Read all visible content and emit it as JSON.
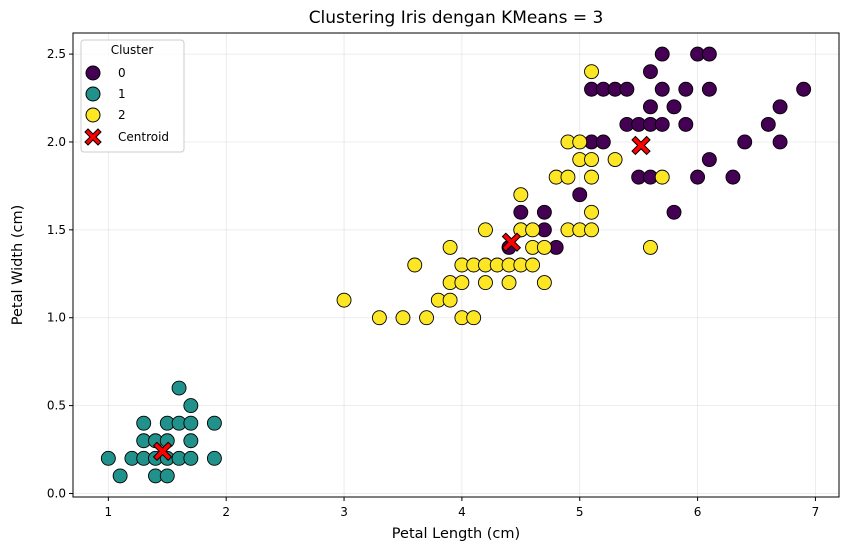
{
  "chart_data": {
    "type": "scatter",
    "title": "Clustering Iris dengan KMeans = 3",
    "xlabel": "Petal Length (cm)",
    "ylabel": "Petal Width (cm)",
    "xlim": [
      0.7,
      7.2
    ],
    "ylim": [
      -0.02,
      2.62
    ],
    "x_ticks": [
      1,
      2,
      3,
      4,
      5,
      6,
      7
    ],
    "y_ticks": [
      0.0,
      0.5,
      1.0,
      1.5,
      2.0,
      2.5
    ],
    "x_tick_labels": [
      "1",
      "2",
      "3",
      "4",
      "5",
      "6",
      "7"
    ],
    "y_tick_labels": [
      "0.0",
      "0.5",
      "1.0",
      "1.5",
      "2.0",
      "2.5"
    ],
    "grid": true,
    "legend": {
      "title": "Cluster",
      "placement": "top-left",
      "entries": [
        "0",
        "1",
        "2",
        "Centroid"
      ]
    },
    "colors": {
      "cluster_0": "#440154",
      "cluster_1": "#21918c",
      "cluster_2": "#fde725",
      "centroid": "#ff0000"
    },
    "series": [
      {
        "name": "0",
        "points": [
          [
            4.4,
            1.4
          ],
          [
            4.5,
            1.5
          ],
          [
            4.5,
            1.6
          ],
          [
            4.7,
            1.5
          ],
          [
            4.7,
            1.6
          ],
          [
            4.8,
            1.4
          ],
          [
            5.0,
            1.7
          ],
          [
            5.1,
            2.0
          ],
          [
            5.2,
            2.0
          ],
          [
            5.1,
            2.3
          ],
          [
            5.2,
            2.3
          ],
          [
            5.3,
            2.3
          ],
          [
            5.4,
            2.3
          ],
          [
            5.4,
            2.1
          ],
          [
            5.5,
            2.1
          ],
          [
            5.6,
            2.1
          ],
          [
            5.7,
            2.1
          ],
          [
            5.6,
            2.2
          ],
          [
            5.6,
            2.4
          ],
          [
            5.7,
            2.5
          ],
          [
            5.7,
            2.3
          ],
          [
            5.8,
            2.2
          ],
          [
            5.9,
            2.3
          ],
          [
            5.9,
            2.1
          ],
          [
            6.0,
            2.5
          ],
          [
            6.1,
            2.5
          ],
          [
            6.1,
            2.3
          ],
          [
            5.5,
            1.8
          ],
          [
            5.6,
            1.8
          ],
          [
            6.0,
            1.8
          ],
          [
            6.1,
            1.9
          ],
          [
            6.3,
            1.8
          ],
          [
            5.8,
            1.6
          ],
          [
            6.4,
            2.0
          ],
          [
            6.6,
            2.1
          ],
          [
            6.7,
            2.2
          ],
          [
            6.7,
            2.0
          ],
          [
            6.9,
            2.3
          ]
        ]
      },
      {
        "name": "1",
        "points": [
          [
            1.0,
            0.2
          ],
          [
            1.1,
            0.1
          ],
          [
            1.2,
            0.2
          ],
          [
            1.3,
            0.2
          ],
          [
            1.3,
            0.3
          ],
          [
            1.3,
            0.4
          ],
          [
            1.4,
            0.1
          ],
          [
            1.4,
            0.2
          ],
          [
            1.4,
            0.3
          ],
          [
            1.5,
            0.1
          ],
          [
            1.5,
            0.2
          ],
          [
            1.5,
            0.3
          ],
          [
            1.5,
            0.4
          ],
          [
            1.6,
            0.2
          ],
          [
            1.6,
            0.4
          ],
          [
            1.6,
            0.6
          ],
          [
            1.7,
            0.2
          ],
          [
            1.7,
            0.3
          ],
          [
            1.7,
            0.4
          ],
          [
            1.7,
            0.5
          ],
          [
            1.9,
            0.2
          ],
          [
            1.9,
            0.4
          ]
        ]
      },
      {
        "name": "2",
        "points": [
          [
            3.0,
            1.1
          ],
          [
            3.3,
            1.0
          ],
          [
            3.5,
            1.0
          ],
          [
            3.6,
            1.3
          ],
          [
            3.7,
            1.0
          ],
          [
            3.8,
            1.1
          ],
          [
            3.9,
            1.1
          ],
          [
            3.9,
            1.2
          ],
          [
            3.9,
            1.4
          ],
          [
            4.0,
            1.0
          ],
          [
            4.0,
            1.2
          ],
          [
            4.0,
            1.3
          ],
          [
            4.1,
            1.0
          ],
          [
            4.1,
            1.3
          ],
          [
            4.2,
            1.2
          ],
          [
            4.2,
            1.3
          ],
          [
            4.2,
            1.5
          ],
          [
            4.3,
            1.3
          ],
          [
            4.4,
            1.2
          ],
          [
            4.4,
            1.3
          ],
          [
            4.5,
            1.3
          ],
          [
            4.5,
            1.5
          ],
          [
            4.5,
            1.7
          ],
          [
            4.6,
            1.3
          ],
          [
            4.6,
            1.4
          ],
          [
            4.6,
            1.5
          ],
          [
            4.7,
            1.2
          ],
          [
            4.7,
            1.4
          ],
          [
            4.8,
            1.8
          ],
          [
            4.9,
            1.5
          ],
          [
            4.9,
            1.8
          ],
          [
            4.9,
            2.0
          ],
          [
            5.0,
            1.5
          ],
          [
            5.0,
            1.9
          ],
          [
            5.0,
            2.0
          ],
          [
            5.1,
            1.5
          ],
          [
            5.1,
            1.6
          ],
          [
            5.1,
            1.8
          ],
          [
            5.1,
            1.9
          ],
          [
            5.1,
            2.4
          ],
          [
            5.3,
            1.9
          ],
          [
            5.6,
            1.4
          ],
          [
            5.7,
            1.8
          ]
        ]
      }
    ],
    "centroids": [
      {
        "x": 5.52,
        "y": 1.98
      },
      {
        "x": 1.46,
        "y": 0.24
      },
      {
        "x": 4.42,
        "y": 1.43
      }
    ]
  }
}
